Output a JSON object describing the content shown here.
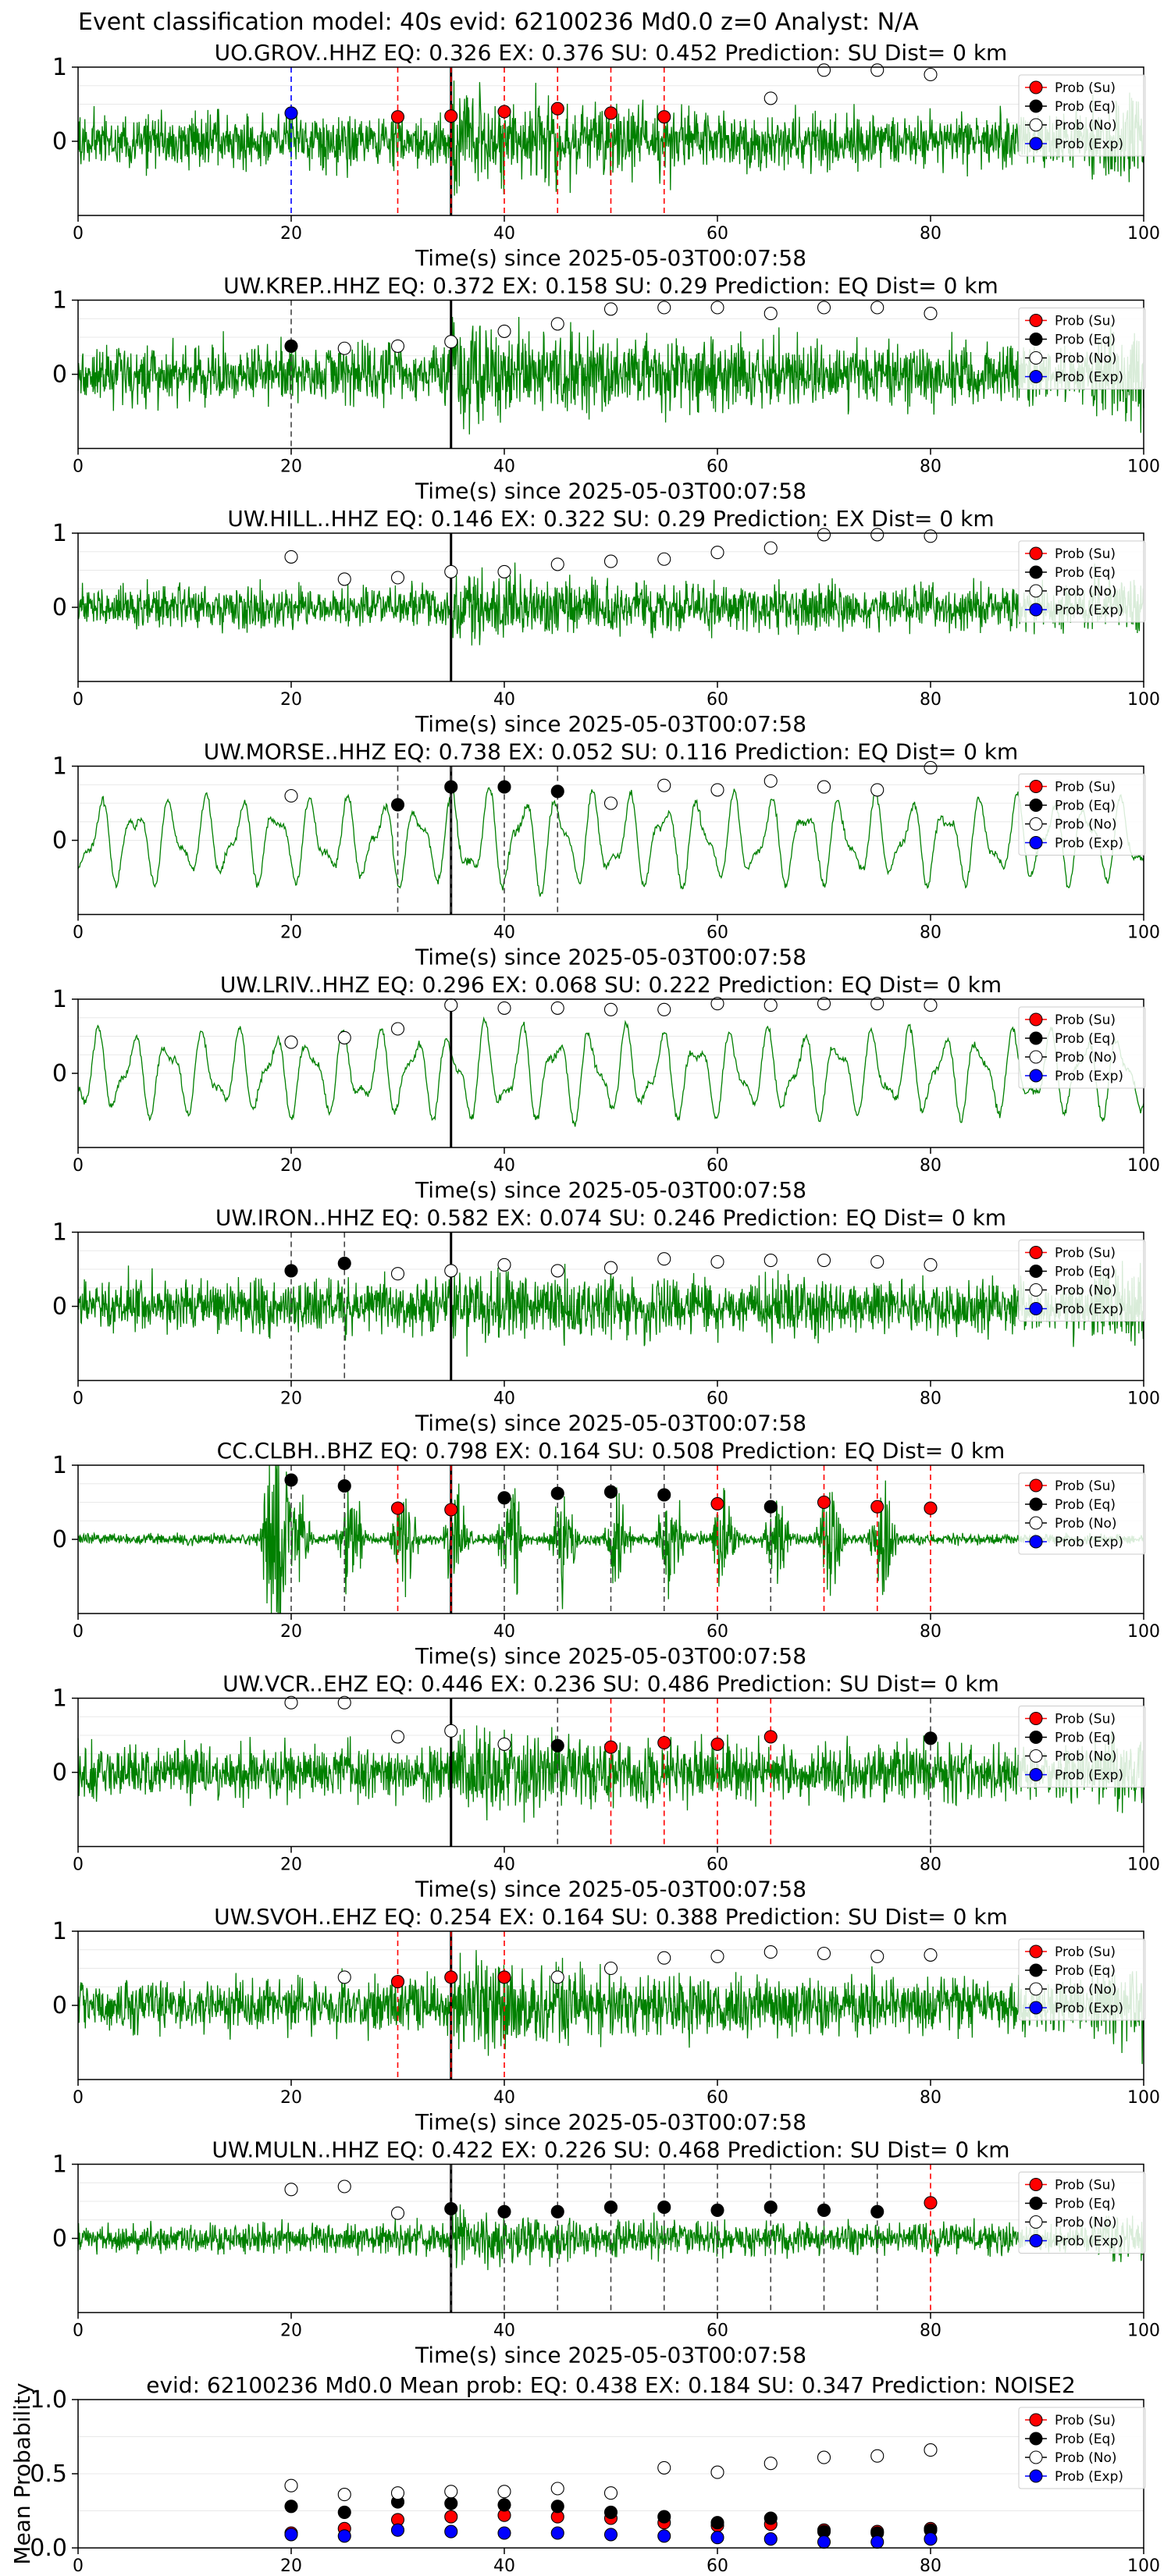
{
  "suptitle": "Event classification model: 40s evid: 62100236 Md0.0 z=0 Analyst: N/A",
  "colors": {
    "trace": "#008000",
    "su": "#ff0000",
    "eq": "#000000",
    "no": "#ffffff",
    "exp": "#0000ff",
    "pick_line": "#000000",
    "axis": "#000000"
  },
  "legend_labels": [
    "Prob (Su)",
    "Prob (Eq)",
    "Prob (No)",
    "Prob (Exp)"
  ],
  "xlabel": "Time(s) since 2025-05-03T00:07:58",
  "xticks": [
    0,
    20,
    40,
    60,
    80,
    100
  ],
  "chart_data": [
    {
      "type": "line",
      "panel": 1,
      "title": "UO.GROV..HHZ   EQ: 0.326  EX: 0.376  SU: 0.452   Prediction: SU    Dist= 0 km",
      "xlim": [
        0,
        100
      ],
      "ylim": [
        -1,
        1
      ],
      "yticks": [
        0,
        1
      ],
      "pick": 35,
      "trace_style": "noisy",
      "amp": 0.45,
      "burst": 1.0,
      "markers": [
        {
          "t": 20,
          "cls": "exp",
          "p": 0.38
        },
        {
          "t": 30,
          "cls": "su",
          "p": 0.33
        },
        {
          "t": 35,
          "cls": "su",
          "p": 0.34
        },
        {
          "t": 40,
          "cls": "su",
          "p": 0.4
        },
        {
          "t": 45,
          "cls": "su",
          "p": 0.44
        },
        {
          "t": 50,
          "cls": "su",
          "p": 0.38
        },
        {
          "t": 55,
          "cls": "su",
          "p": 0.33
        },
        {
          "t": 65,
          "cls": "no",
          "p": 0.58
        },
        {
          "t": 70,
          "cls": "no",
          "p": 0.96
        },
        {
          "t": 75,
          "cls": "no",
          "p": 0.96
        },
        {
          "t": 80,
          "cls": "no",
          "p": 0.9
        }
      ]
    },
    {
      "type": "line",
      "panel": 2,
      "title": "UW.KREP..HHZ   EQ: 0.372  EX: 0.158  SU: 0.29   Prediction: EQ    Dist= 0 km",
      "xlim": [
        0,
        100
      ],
      "ylim": [
        -1,
        1
      ],
      "yticks": [
        0,
        1
      ],
      "pick": 35,
      "trace_style": "noisy",
      "amp": 0.5,
      "burst": 0.9,
      "markers": [
        {
          "t": 20,
          "cls": "eq",
          "p": 0.38
        },
        {
          "t": 25,
          "cls": "no",
          "p": 0.35
        },
        {
          "t": 30,
          "cls": "no",
          "p": 0.38
        },
        {
          "t": 35,
          "cls": "no",
          "p": 0.44
        },
        {
          "t": 40,
          "cls": "no",
          "p": 0.58
        },
        {
          "t": 45,
          "cls": "no",
          "p": 0.68
        },
        {
          "t": 50,
          "cls": "no",
          "p": 0.88
        },
        {
          "t": 55,
          "cls": "no",
          "p": 0.9
        },
        {
          "t": 60,
          "cls": "no",
          "p": 0.9
        },
        {
          "t": 65,
          "cls": "no",
          "p": 0.82
        },
        {
          "t": 70,
          "cls": "no",
          "p": 0.9
        },
        {
          "t": 75,
          "cls": "no",
          "p": 0.9
        },
        {
          "t": 80,
          "cls": "no",
          "p": 0.82
        }
      ]
    },
    {
      "type": "line",
      "panel": 3,
      "title": "UW.HILL..HHZ   EQ: 0.146  EX: 0.322  SU: 0.29   Prediction: EX    Dist= 0 km",
      "xlim": [
        0,
        100
      ],
      "ylim": [
        -1,
        1
      ],
      "yticks": [
        0,
        1
      ],
      "pick": 35,
      "trace_style": "noisy",
      "amp": 0.35,
      "burst": 0.9,
      "markers": [
        {
          "t": 20,
          "cls": "no",
          "p": 0.68
        },
        {
          "t": 25,
          "cls": "no",
          "p": 0.38
        },
        {
          "t": 30,
          "cls": "no",
          "p": 0.4
        },
        {
          "t": 35,
          "cls": "no",
          "p": 0.48
        },
        {
          "t": 40,
          "cls": "no",
          "p": 0.48
        },
        {
          "t": 45,
          "cls": "no",
          "p": 0.58
        },
        {
          "t": 50,
          "cls": "no",
          "p": 0.62
        },
        {
          "t": 55,
          "cls": "no",
          "p": 0.65
        },
        {
          "t": 60,
          "cls": "no",
          "p": 0.74
        },
        {
          "t": 65,
          "cls": "no",
          "p": 0.8
        },
        {
          "t": 70,
          "cls": "no",
          "p": 0.98
        },
        {
          "t": 75,
          "cls": "no",
          "p": 0.98
        },
        {
          "t": 80,
          "cls": "no",
          "p": 0.96
        }
      ]
    },
    {
      "type": "line",
      "panel": 4,
      "title": "UW.MORSE..HHZ   EQ: 0.738  EX: 0.052  SU: 0.116   Prediction: EQ    Dist= 0 km",
      "xlim": [
        0,
        100
      ],
      "ylim": [
        -1,
        1
      ],
      "yticks": [
        0,
        1
      ],
      "pick": 35,
      "trace_style": "wavy",
      "amp": 0.6,
      "burst": 0.3,
      "markers": [
        {
          "t": 20,
          "cls": "no",
          "p": 0.6
        },
        {
          "t": 30,
          "cls": "eq",
          "p": 0.48
        },
        {
          "t": 35,
          "cls": "eq",
          "p": 0.72
        },
        {
          "t": 40,
          "cls": "eq",
          "p": 0.72
        },
        {
          "t": 45,
          "cls": "eq",
          "p": 0.66
        },
        {
          "t": 50,
          "cls": "no",
          "p": 0.5
        },
        {
          "t": 55,
          "cls": "no",
          "p": 0.74
        },
        {
          "t": 60,
          "cls": "no",
          "p": 0.68
        },
        {
          "t": 65,
          "cls": "no",
          "p": 0.8
        },
        {
          "t": 70,
          "cls": "no",
          "p": 0.72
        },
        {
          "t": 75,
          "cls": "no",
          "p": 0.68
        },
        {
          "t": 80,
          "cls": "no",
          "p": 0.98
        }
      ]
    },
    {
      "type": "line",
      "panel": 5,
      "title": "UW.LRIV..HHZ   EQ: 0.296  EX: 0.068  SU: 0.222   Prediction: EQ    Dist= 0 km",
      "xlim": [
        0,
        100
      ],
      "ylim": [
        -1,
        1
      ],
      "yticks": [
        0,
        1
      ],
      "pick": 35,
      "trace_style": "wavy",
      "amp": 0.6,
      "burst": 0.2,
      "markers": [
        {
          "t": 20,
          "cls": "no",
          "p": 0.42
        },
        {
          "t": 25,
          "cls": "no",
          "p": 0.48
        },
        {
          "t": 30,
          "cls": "no",
          "p": 0.6
        },
        {
          "t": 35,
          "cls": "no",
          "p": 0.92
        },
        {
          "t": 40,
          "cls": "no",
          "p": 0.88
        },
        {
          "t": 45,
          "cls": "no",
          "p": 0.88
        },
        {
          "t": 50,
          "cls": "no",
          "p": 0.86
        },
        {
          "t": 55,
          "cls": "no",
          "p": 0.86
        },
        {
          "t": 60,
          "cls": "no",
          "p": 0.94
        },
        {
          "t": 65,
          "cls": "no",
          "p": 0.92
        },
        {
          "t": 70,
          "cls": "no",
          "p": 0.94
        },
        {
          "t": 75,
          "cls": "no",
          "p": 0.94
        },
        {
          "t": 80,
          "cls": "no",
          "p": 0.92
        }
      ]
    },
    {
      "type": "line",
      "panel": 6,
      "title": "UW.IRON..HHZ   EQ: 0.582  EX: 0.074  SU: 0.246   Prediction: EQ    Dist= 0 km",
      "xlim": [
        0,
        100
      ],
      "ylim": [
        -1,
        1
      ],
      "yticks": [
        0,
        1
      ],
      "pick": 35,
      "trace_style": "noisy",
      "amp": 0.45,
      "burst": 0.6,
      "markers": [
        {
          "t": 20,
          "cls": "eq",
          "p": 0.48
        },
        {
          "t": 25,
          "cls": "eq",
          "p": 0.58
        },
        {
          "t": 30,
          "cls": "no",
          "p": 0.44
        },
        {
          "t": 35,
          "cls": "no",
          "p": 0.48
        },
        {
          "t": 40,
          "cls": "no",
          "p": 0.56
        },
        {
          "t": 45,
          "cls": "no",
          "p": 0.48
        },
        {
          "t": 50,
          "cls": "no",
          "p": 0.52
        },
        {
          "t": 55,
          "cls": "no",
          "p": 0.64
        },
        {
          "t": 60,
          "cls": "no",
          "p": 0.6
        },
        {
          "t": 65,
          "cls": "no",
          "p": 0.62
        },
        {
          "t": 70,
          "cls": "no",
          "p": 0.62
        },
        {
          "t": 75,
          "cls": "no",
          "p": 0.6
        },
        {
          "t": 80,
          "cls": "no",
          "p": 0.56
        }
      ]
    },
    {
      "type": "line",
      "panel": 7,
      "title": "CC.CLBH..BHZ   EQ: 0.798  EX: 0.164  SU: 0.508   Prediction: EQ    Dist= 0 km",
      "xlim": [
        0,
        100
      ],
      "ylim": [
        -1,
        1
      ],
      "yticks": [
        0,
        1
      ],
      "pick": 35,
      "trace_style": "spiky",
      "amp": 0.1,
      "burst": 0.5,
      "markers": [
        {
          "t": 20,
          "cls": "eq",
          "p": 0.8
        },
        {
          "t": 25,
          "cls": "eq",
          "p": 0.72
        },
        {
          "t": 30,
          "cls": "su",
          "p": 0.42
        },
        {
          "t": 35,
          "cls": "su",
          "p": 0.4
        },
        {
          "t": 40,
          "cls": "eq",
          "p": 0.56
        },
        {
          "t": 45,
          "cls": "eq",
          "p": 0.62
        },
        {
          "t": 50,
          "cls": "eq",
          "p": 0.64
        },
        {
          "t": 55,
          "cls": "eq",
          "p": 0.6
        },
        {
          "t": 60,
          "cls": "su",
          "p": 0.48
        },
        {
          "t": 65,
          "cls": "eq",
          "p": 0.44
        },
        {
          "t": 70,
          "cls": "su",
          "p": 0.5
        },
        {
          "t": 75,
          "cls": "su",
          "p": 0.44
        },
        {
          "t": 80,
          "cls": "su",
          "p": 0.42
        }
      ]
    },
    {
      "type": "line",
      "panel": 8,
      "title": "UW.VCR..EHZ   EQ: 0.446  EX: 0.236  SU: 0.486   Prediction: SU    Dist= 0 km",
      "xlim": [
        0,
        100
      ],
      "ylim": [
        -1,
        1
      ],
      "yticks": [
        0,
        1
      ],
      "pick": 35,
      "trace_style": "noisy",
      "amp": 0.45,
      "burst": 0.7,
      "markers": [
        {
          "t": 20,
          "cls": "no",
          "p": 0.94
        },
        {
          "t": 25,
          "cls": "no",
          "p": 0.94
        },
        {
          "t": 30,
          "cls": "no",
          "p": 0.48
        },
        {
          "t": 35,
          "cls": "no",
          "p": 0.56
        },
        {
          "t": 40,
          "cls": "no",
          "p": 0.38
        },
        {
          "t": 45,
          "cls": "eq",
          "p": 0.36
        },
        {
          "t": 50,
          "cls": "su",
          "p": 0.34
        },
        {
          "t": 55,
          "cls": "su",
          "p": 0.4
        },
        {
          "t": 60,
          "cls": "su",
          "p": 0.38
        },
        {
          "t": 65,
          "cls": "su",
          "p": 0.48
        },
        {
          "t": 80,
          "cls": "eq",
          "p": 0.46
        }
      ]
    },
    {
      "type": "line",
      "panel": 9,
      "title": "UW.SVOH..EHZ   EQ: 0.254  EX: 0.164  SU: 0.388   Prediction: SU    Dist= 0 km",
      "xlim": [
        0,
        100
      ],
      "ylim": [
        -1,
        1
      ],
      "yticks": [
        0,
        1
      ],
      "pick": 35,
      "trace_style": "noisy",
      "amp": 0.45,
      "burst": 1.0,
      "markers": [
        {
          "t": 25,
          "cls": "no",
          "p": 0.38
        },
        {
          "t": 30,
          "cls": "su",
          "p": 0.32
        },
        {
          "t": 35,
          "cls": "su",
          "p": 0.38
        },
        {
          "t": 40,
          "cls": "su",
          "p": 0.38
        },
        {
          "t": 45,
          "cls": "no",
          "p": 0.38
        },
        {
          "t": 50,
          "cls": "no",
          "p": 0.5
        },
        {
          "t": 55,
          "cls": "no",
          "p": 0.64
        },
        {
          "t": 60,
          "cls": "no",
          "p": 0.66
        },
        {
          "t": 65,
          "cls": "no",
          "p": 0.72
        },
        {
          "t": 70,
          "cls": "no",
          "p": 0.7
        },
        {
          "t": 75,
          "cls": "no",
          "p": 0.66
        },
        {
          "t": 80,
          "cls": "no",
          "p": 0.68
        }
      ]
    },
    {
      "type": "line",
      "panel": 10,
      "title": "UW.MULN..HHZ   EQ: 0.422  EX: 0.226  SU: 0.468   Prediction: SU    Dist= 0 km",
      "xlim": [
        0,
        100
      ],
      "ylim": [
        -1,
        1
      ],
      "yticks": [
        0,
        1
      ],
      "pick": 35,
      "trace_style": "noisy",
      "amp": 0.25,
      "burst": 1.0,
      "markers": [
        {
          "t": 20,
          "cls": "no",
          "p": 0.66
        },
        {
          "t": 25,
          "cls": "no",
          "p": 0.7
        },
        {
          "t": 30,
          "cls": "no",
          "p": 0.34
        },
        {
          "t": 35,
          "cls": "eq",
          "p": 0.4
        },
        {
          "t": 40,
          "cls": "eq",
          "p": 0.36
        },
        {
          "t": 45,
          "cls": "eq",
          "p": 0.36
        },
        {
          "t": 50,
          "cls": "eq",
          "p": 0.42
        },
        {
          "t": 55,
          "cls": "eq",
          "p": 0.42
        },
        {
          "t": 60,
          "cls": "eq",
          "p": 0.38
        },
        {
          "t": 65,
          "cls": "eq",
          "p": 0.42
        },
        {
          "t": 70,
          "cls": "eq",
          "p": 0.38
        },
        {
          "t": 75,
          "cls": "eq",
          "p": 0.36
        },
        {
          "t": 80,
          "cls": "su",
          "p": 0.48
        }
      ]
    },
    {
      "type": "scatter",
      "panel": 11,
      "title": "evid: 62100236  Md0.0   Mean prob:   EQ: 0.438  EX: 0.184  SU: 0.347   Prediction: NOISE2",
      "ylabel": "Mean Probability",
      "xlim": [
        0,
        100
      ],
      "ylim": [
        0,
        1
      ],
      "yticks": [
        "0.0",
        "0.5",
        "1.0"
      ],
      "x": [
        20,
        25,
        30,
        35,
        40,
        45,
        50,
        55,
        60,
        65,
        70,
        75,
        80
      ],
      "series": [
        {
          "name": "Prob (Su)",
          "cls": "su",
          "values": [
            0.1,
            0.13,
            0.19,
            0.21,
            0.22,
            0.21,
            0.2,
            0.17,
            0.15,
            0.16,
            0.12,
            0.11,
            0.13
          ]
        },
        {
          "name": "Prob (Eq)",
          "cls": "eq",
          "values": [
            0.28,
            0.24,
            0.31,
            0.3,
            0.29,
            0.28,
            0.24,
            0.21,
            0.17,
            0.2,
            0.11,
            0.1,
            0.12
          ]
        },
        {
          "name": "Prob (No)",
          "cls": "no",
          "values": [
            0.42,
            0.36,
            0.37,
            0.38,
            0.38,
            0.4,
            0.37,
            0.54,
            0.51,
            0.57,
            0.61,
            0.62,
            0.66
          ]
        },
        {
          "name": "Prob (Exp)",
          "cls": "exp",
          "values": [
            0.09,
            0.08,
            0.12,
            0.11,
            0.1,
            0.1,
            0.09,
            0.08,
            0.07,
            0.06,
            0.04,
            0.04,
            0.06
          ]
        }
      ]
    }
  ]
}
